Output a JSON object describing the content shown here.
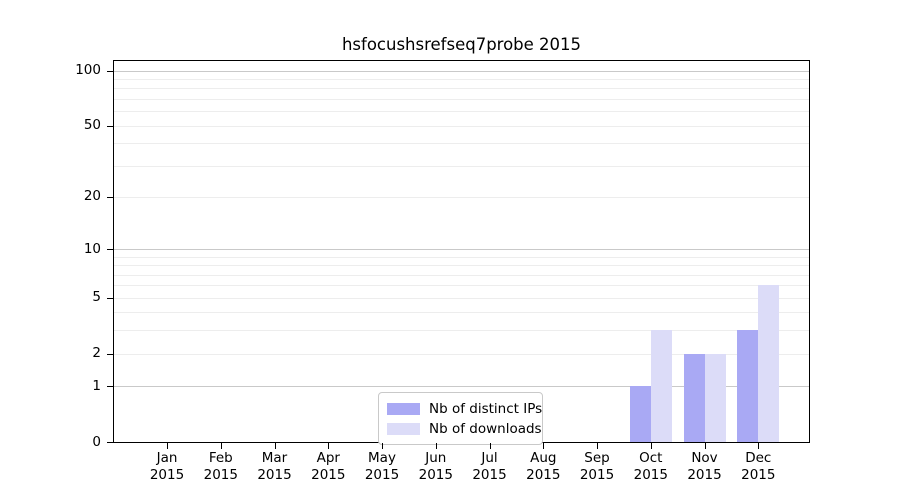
{
  "chart_data": {
    "type": "bar",
    "title": "hsfocushsrefseq7probe 2015",
    "months": [
      "Jan",
      "Feb",
      "Mar",
      "Apr",
      "May",
      "Jun",
      "Jul",
      "Aug",
      "Sep",
      "Oct",
      "Nov",
      "Dec"
    ],
    "year": "2015",
    "series": [
      {
        "name": "Nb of distinct IPs",
        "color": "#a9a9f4",
        "values": [
          0,
          0,
          0,
          0,
          0,
          0,
          0,
          0,
          0,
          1,
          2,
          3
        ]
      },
      {
        "name": "Nb of downloads",
        "color": "#dcdcf8",
        "values": [
          0,
          0,
          0,
          0,
          0,
          0,
          0,
          0,
          0,
          3,
          2,
          6
        ]
      }
    ],
    "yscale": "log1p",
    "ylim": [
      0,
      113
    ],
    "yticks": [
      0,
      1,
      2,
      5,
      10,
      20,
      50,
      100
    ],
    "major_gridlines": [
      1,
      10,
      100
    ],
    "minor_gridlines": [
      2,
      3,
      4,
      5,
      6,
      7,
      8,
      9,
      20,
      30,
      40,
      50,
      60,
      70,
      80,
      90
    ],
    "grid": true,
    "legend_position": "lower center",
    "xlabel": "",
    "ylabel": ""
  }
}
